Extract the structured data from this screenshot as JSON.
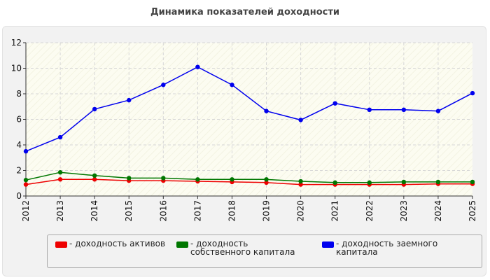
{
  "chart_data": {
    "type": "line",
    "title": "Динамика показателей доходности",
    "xlabel": "",
    "ylabel": "",
    "categories": [
      "2012",
      "2013",
      "2014",
      "2015",
      "2016",
      "2017",
      "2018",
      "2019",
      "2020",
      "2021",
      "2022",
      "2023",
      "2024",
      "2025"
    ],
    "ylim": [
      0,
      12
    ],
    "yticks": [
      "0",
      "2",
      "4",
      "6",
      "8",
      "10",
      "12"
    ],
    "grid": true,
    "legend_position": "bottom",
    "series": [
      {
        "name": "- доходность активов",
        "color": "#ee0000",
        "values": [
          0.9,
          1.3,
          1.3,
          1.2,
          1.2,
          1.15,
          1.1,
          1.05,
          0.9,
          0.9,
          0.9,
          0.9,
          0.95,
          0.95
        ]
      },
      {
        "name": "- доходность собственного капитала",
        "color": "#007700",
        "values": [
          1.25,
          1.85,
          1.6,
          1.4,
          1.4,
          1.3,
          1.3,
          1.3,
          1.15,
          1.05,
          1.05,
          1.1,
          1.1,
          1.1
        ]
      },
      {
        "name": "- доходность заемного капитала",
        "color": "#0000ee",
        "values": [
          3.5,
          4.6,
          6.8,
          7.5,
          8.7,
          10.1,
          8.7,
          6.65,
          5.95,
          7.25,
          6.75,
          6.75,
          6.65,
          8.05
        ]
      }
    ]
  }
}
